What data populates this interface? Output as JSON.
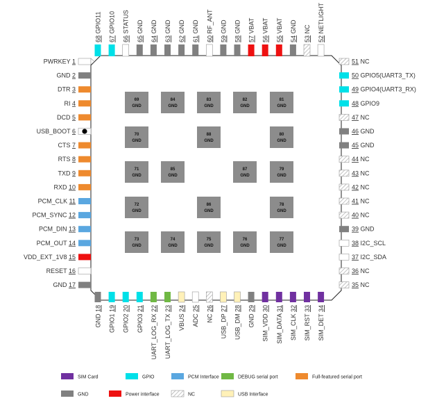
{
  "colors": {
    "sim": "#7030a0",
    "gpio": "#00e0e8",
    "pcm": "#5aa7e0",
    "debug": "#70b844",
    "serial": "#ee8a2e",
    "gnd": "#808080",
    "power": "#ee1111",
    "usb": "#fff1b8",
    "none": "#ffffff",
    "pad": "#8c8c8c"
  },
  "top_pins": [
    {
      "num": "68",
      "name": "GPIO11",
      "cat": "gpio"
    },
    {
      "num": "67",
      "name": "GPIO10",
      "cat": "gpio"
    },
    {
      "num": "66",
      "name": "STATUS",
      "cat": "none"
    },
    {
      "num": "65",
      "name": "GND",
      "cat": "gnd"
    },
    {
      "num": "64",
      "name": "GND",
      "cat": "gnd"
    },
    {
      "num": "63",
      "name": "GND",
      "cat": "gnd"
    },
    {
      "num": "62",
      "name": "GND",
      "cat": "gnd"
    },
    {
      "num": "61",
      "name": "GND",
      "cat": "gnd"
    },
    {
      "num": "60",
      "name": "RF_ANT",
      "cat": "none"
    },
    {
      "num": "59",
      "name": "GND",
      "cat": "gnd"
    },
    {
      "num": "58",
      "name": "GND",
      "cat": "gnd"
    },
    {
      "num": "57",
      "name": "VBAT",
      "cat": "power"
    },
    {
      "num": "56",
      "name": "VBAT",
      "cat": "power"
    },
    {
      "num": "55",
      "name": "VBAT",
      "cat": "power"
    },
    {
      "num": "54",
      "name": "GND",
      "cat": "gnd"
    },
    {
      "num": "53",
      "name": "NC",
      "cat": "nc"
    },
    {
      "num": "52",
      "name": "NETLIGHT",
      "cat": "none"
    }
  ],
  "left_pins": [
    {
      "num": "1",
      "name": "PWRKEY",
      "cat": "none"
    },
    {
      "num": "2",
      "name": "GND",
      "cat": "gnd"
    },
    {
      "num": "3",
      "name": "DTR",
      "cat": "serial"
    },
    {
      "num": "4",
      "name": "RI",
      "cat": "serial"
    },
    {
      "num": "5",
      "name": "DCD",
      "cat": "serial"
    },
    {
      "num": "6",
      "name": "USB_BOOT",
      "cat": "none"
    },
    {
      "num": "7",
      "name": "CTS",
      "cat": "serial"
    },
    {
      "num": "8",
      "name": "RTS",
      "cat": "serial"
    },
    {
      "num": "9",
      "name": "TXD",
      "cat": "serial"
    },
    {
      "num": "10",
      "name": "RXD",
      "cat": "serial"
    },
    {
      "num": "11",
      "name": "PCM_CLK",
      "cat": "pcm"
    },
    {
      "num": "12",
      "name": "PCM_SYNC",
      "cat": "pcm"
    },
    {
      "num": "13",
      "name": "PCM_DIN",
      "cat": "pcm"
    },
    {
      "num": "14",
      "name": "PCM_OUT",
      "cat": "pcm"
    },
    {
      "num": "15",
      "name": "VDD_EXT_1V8",
      "cat": "power"
    },
    {
      "num": "16",
      "name": "RESET",
      "cat": "none"
    },
    {
      "num": "17",
      "name": "GND",
      "cat": "gnd"
    }
  ],
  "bottom_pins": [
    {
      "num": "18",
      "name": "GND",
      "cat": "gnd"
    },
    {
      "num": "19",
      "name": "GPIO1",
      "cat": "gpio"
    },
    {
      "num": "20",
      "name": "GPIO2",
      "cat": "gpio"
    },
    {
      "num": "21",
      "name": "GPIO3",
      "cat": "gpio"
    },
    {
      "num": "22",
      "name": "UART_LOG_RX",
      "cat": "debug"
    },
    {
      "num": "23",
      "name": "UART_LOG_TX",
      "cat": "debug"
    },
    {
      "num": "24",
      "name": "VBUS",
      "cat": "usb"
    },
    {
      "num": "25",
      "name": "ADC",
      "cat": "none"
    },
    {
      "num": "26",
      "name": "NC",
      "cat": "nc"
    },
    {
      "num": "27",
      "name": "USB_DP",
      "cat": "usb"
    },
    {
      "num": "28",
      "name": "USB_DM",
      "cat": "usb"
    },
    {
      "num": "29",
      "name": "GND",
      "cat": "gnd"
    },
    {
      "num": "30",
      "name": "SIM_VDD",
      "cat": "sim"
    },
    {
      "num": "31",
      "name": "SIM_DATA",
      "cat": "sim"
    },
    {
      "num": "32",
      "name": "SIM_CLK",
      "cat": "sim"
    },
    {
      "num": "33",
      "name": "SIM_RST",
      "cat": "sim"
    },
    {
      "num": "34",
      "name": "SIM_DET",
      "cat": "sim"
    }
  ],
  "right_pins": [
    {
      "num": "51",
      "name": "NC",
      "cat": "nc"
    },
    {
      "num": "50",
      "name": "GPIO5(UART3_TX)",
      "cat": "gpio"
    },
    {
      "num": "49",
      "name": "GPIO4(UART3_RX)",
      "cat": "gpio"
    },
    {
      "num": "48",
      "name": "GPIO9",
      "cat": "gpio"
    },
    {
      "num": "47",
      "name": "NC",
      "cat": "nc"
    },
    {
      "num": "46",
      "name": "GND",
      "cat": "gnd"
    },
    {
      "num": "45",
      "name": "GND",
      "cat": "gnd"
    },
    {
      "num": "44",
      "name": "NC",
      "cat": "nc"
    },
    {
      "num": "43",
      "name": "NC",
      "cat": "nc"
    },
    {
      "num": "42",
      "name": "NC",
      "cat": "nc"
    },
    {
      "num": "41",
      "name": "NC",
      "cat": "nc"
    },
    {
      "num": "40",
      "name": "NC",
      "cat": "nc"
    },
    {
      "num": "39",
      "name": "GND",
      "cat": "gnd"
    },
    {
      "num": "38",
      "name": "I2C_SCL",
      "cat": "none"
    },
    {
      "num": "37",
      "name": "I2C_SDA",
      "cat": "none"
    },
    {
      "num": "36",
      "name": "NC",
      "cat": "nc"
    },
    {
      "num": "35",
      "name": "NC",
      "cat": "nc"
    }
  ],
  "center_pads": [
    {
      "row": 0,
      "col": 0,
      "num": "69",
      "label": "GND"
    },
    {
      "row": 0,
      "col": 1,
      "num": "84",
      "label": "GND"
    },
    {
      "row": 0,
      "col": 2,
      "num": "83",
      "label": "GND"
    },
    {
      "row": 0,
      "col": 3,
      "num": "82",
      "label": "GND"
    },
    {
      "row": 0,
      "col": 4,
      "num": "81",
      "label": "GND"
    },
    {
      "row": 1,
      "col": 0,
      "num": "70",
      "label": "GND"
    },
    {
      "row": 1,
      "col": 2,
      "num": "88",
      "label": "GND"
    },
    {
      "row": 1,
      "col": 4,
      "num": "80",
      "label": "GND"
    },
    {
      "row": 2,
      "col": 0,
      "num": "71",
      "label": "GND"
    },
    {
      "row": 2,
      "col": 1,
      "num": "85",
      "label": "GND"
    },
    {
      "row": 2,
      "col": 3,
      "num": "87",
      "label": "GND"
    },
    {
      "row": 2,
      "col": 4,
      "num": "79",
      "label": "GND"
    },
    {
      "row": 3,
      "col": 0,
      "num": "72",
      "label": "GND"
    },
    {
      "row": 3,
      "col": 2,
      "num": "86",
      "label": "GND"
    },
    {
      "row": 3,
      "col": 4,
      "num": "78",
      "label": "GND"
    },
    {
      "row": 4,
      "col": 0,
      "num": "73",
      "label": "GND"
    },
    {
      "row": 4,
      "col": 1,
      "num": "74",
      "label": "GND"
    },
    {
      "row": 4,
      "col": 2,
      "num": "75",
      "label": "GND"
    },
    {
      "row": 4,
      "col": 3,
      "num": "76",
      "label": "GND"
    },
    {
      "row": 4,
      "col": 4,
      "num": "77",
      "label": "GND"
    }
  ],
  "legend": [
    {
      "cat": "sim",
      "label": "SIM Card"
    },
    {
      "cat": "gpio",
      "label": "GPIO"
    },
    {
      "cat": "pcm",
      "label": "PCM Interface"
    },
    {
      "cat": "debug",
      "label": "DEBUG serial port"
    },
    {
      "cat": "serial",
      "label": "Full-featured serial port"
    },
    {
      "cat": "gnd",
      "label": "GND"
    },
    {
      "cat": "power",
      "label": "Power interface"
    },
    {
      "cat": "nc",
      "label": "NC"
    },
    {
      "cat": "usb",
      "label": "USB Interface"
    }
  ]
}
